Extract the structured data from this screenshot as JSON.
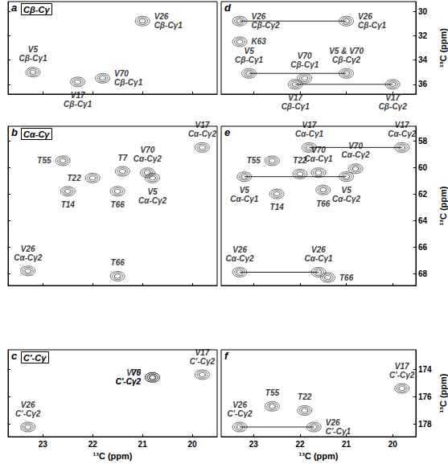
{
  "chart_data": [
    {
      "type": "scatter",
      "marker": "contour",
      "title": "a",
      "subtitle": "Cβ-Cγ",
      "color": "#222222",
      "grid": false,
      "tick_labels": false,
      "xlim": [
        23.7,
        19.5
      ],
      "xticks": [
        23,
        22,
        21,
        20
      ],
      "ylim": [
        36.8,
        29.2
      ],
      "yticks": [
        30,
        32,
        34,
        36
      ],
      "points": [
        {
          "x": 21.0,
          "y": 30.8,
          "label": "V26\nCβ-Cγ1"
        },
        {
          "x": 23.2,
          "y": 35.0,
          "label": "V5\nCβ-Cγ1"
        },
        {
          "x": 22.3,
          "y": 35.8,
          "label": "V17\nCβ-Cγ1"
        },
        {
          "x": 21.8,
          "y": 35.5,
          "label": "V70\nCβ-Cγ1"
        }
      ],
      "lines": []
    },
    {
      "type": "scatter",
      "marker": "contour",
      "title": "b",
      "subtitle": "Cα-Cγ",
      "color": "#222222",
      "grid": false,
      "tick_labels": false,
      "xlim": [
        23.7,
        19.5
      ],
      "xticks": [
        23,
        22,
        21,
        20
      ],
      "ylim": [
        68.9,
        56.9
      ],
      "yticks": [
        58,
        60,
        62,
        64,
        66,
        68
      ],
      "points": [
        {
          "x": 22.6,
          "y": 59.5,
          "label": "T55"
        },
        {
          "x": 21.4,
          "y": 60.3,
          "label": "T7"
        },
        {
          "x": 20.9,
          "y": 60.4,
          "label": "V70\nCα-Cγ2"
        },
        {
          "x": 20.8,
          "y": 60.8,
          "label": "V5\nCα-Cγ2"
        },
        {
          "x": 22.0,
          "y": 60.8,
          "label": "T22"
        },
        {
          "x": 22.5,
          "y": 61.8,
          "label": "T14"
        },
        {
          "x": 21.5,
          "y": 61.8,
          "label": "T66"
        },
        {
          "x": 19.8,
          "y": 58.5,
          "label": "V17\nCα-Cγ2"
        },
        {
          "x": 23.3,
          "y": 67.8,
          "label": "V26\nCα-Cγ2"
        },
        {
          "x": 21.5,
          "y": 68.2,
          "label": "T66"
        }
      ],
      "lines": []
    },
    {
      "type": "scatter",
      "marker": "contour",
      "title": "c",
      "subtitle": "C'-Cγ",
      "color": "#222222",
      "grid": false,
      "tick_labels": "x",
      "xlabel": "¹³C (ppm)",
      "xlim": [
        23.7,
        19.5
      ],
      "xticks": [
        23,
        22,
        21,
        20
      ],
      "ylim": [
        178.9,
        172.6
      ],
      "yticks": [
        174,
        176,
        178
      ],
      "points": [
        {
          "x": 20.8,
          "y": 174.6,
          "label": "V5\nC'-Cγ2"
        },
        {
          "x": 20.8,
          "y": 174.6,
          "label": "V70\nC'-Cγ2"
        },
        {
          "x": 19.8,
          "y": 174.4,
          "label": "V17\nC'-Cγ2"
        },
        {
          "x": 23.3,
          "y": 178.2,
          "label": "V26\nC'-Cγ2"
        }
      ],
      "lines": []
    },
    {
      "type": "scatter",
      "marker": "contour",
      "title": "d",
      "color": "#222222",
      "grid": false,
      "tick_labels": "y",
      "ylabel": "¹³C (ppm)",
      "xlim": [
        23.7,
        19.5
      ],
      "xticks": [
        23,
        22,
        21,
        20
      ],
      "ylim": [
        36.8,
        29.2
      ],
      "yticks": [
        30,
        32,
        34,
        36
      ],
      "points": [
        {
          "x": 23.3,
          "y": 30.8,
          "label": "V26\nCβ-Cγ2"
        },
        {
          "x": 21.0,
          "y": 30.8,
          "label": "V26\nCβ-Cγ1"
        },
        {
          "x": 23.3,
          "y": 32.5,
          "label": "K63"
        },
        {
          "x": 23.1,
          "y": 35.1,
          "label": "V5\nCβ-Cγ1"
        },
        {
          "x": 21.9,
          "y": 35.5,
          "label": "V70\nCβ-Cγ1"
        },
        {
          "x": 21.0,
          "y": 35.1,
          "label": "V5 & V70\nCβ-Cγ2"
        },
        {
          "x": 22.1,
          "y": 36.0,
          "label": "V17\nCβ-Cγ1"
        },
        {
          "x": 20.0,
          "y": 36.0,
          "label": "V17\nCβ-Cγ2"
        }
      ],
      "lines": [
        {
          "x": [
            23.3,
            21.0
          ],
          "y": [
            30.8,
            30.8
          ]
        },
        {
          "x": [
            23.1,
            21.0
          ],
          "y": [
            35.1,
            35.1
          ]
        },
        {
          "x": [
            22.1,
            20.0
          ],
          "y": [
            36.0,
            36.0
          ]
        }
      ]
    },
    {
      "type": "scatter",
      "marker": "contour",
      "title": "e",
      "color": "#222222",
      "grid": false,
      "tick_labels": "y",
      "ylabel": "¹³C (ppm)",
      "xlim": [
        23.7,
        19.5
      ],
      "xticks": [
        23,
        22,
        21,
        20
      ],
      "ylim": [
        68.9,
        56.9
      ],
      "yticks": [
        58,
        60,
        62,
        64,
        66,
        68
      ],
      "points": [
        {
          "x": 21.8,
          "y": 58.5,
          "label": "V17\nCα-Cγ1"
        },
        {
          "x": 19.8,
          "y": 58.5,
          "label": "V17\nCα-Cγ2"
        },
        {
          "x": 22.6,
          "y": 59.5,
          "label": "T55"
        },
        {
          "x": 23.2,
          "y": 60.7,
          "label": "V5\nCα-Cγ1"
        },
        {
          "x": 21.0,
          "y": 60.7,
          "label": "V5\nCα-Cγ2"
        },
        {
          "x": 22.0,
          "y": 60.5,
          "label": "T22"
        },
        {
          "x": 21.6,
          "y": 60.4,
          "label": "V70\nCα-Cγ1"
        },
        {
          "x": 20.8,
          "y": 60.1,
          "label": "V70\nCα-Cγ2"
        },
        {
          "x": 22.5,
          "y": 62.0,
          "label": "T14"
        },
        {
          "x": 21.5,
          "y": 61.7,
          "label": "T66"
        },
        {
          "x": 23.3,
          "y": 67.9,
          "label": "V26\nCα-Cγ2"
        },
        {
          "x": 21.6,
          "y": 67.9,
          "label": "V26\nCα-Cγ1"
        },
        {
          "x": 21.4,
          "y": 68.3,
          "label": "T66"
        }
      ],
      "lines": [
        {
          "x": [
            21.8,
            19.8
          ],
          "y": [
            58.5,
            58.5
          ]
        },
        {
          "x": [
            23.2,
            21.0
          ],
          "y": [
            60.7,
            60.7
          ]
        },
        {
          "x": [
            23.3,
            21.6
          ],
          "y": [
            67.9,
            67.9
          ]
        }
      ]
    },
    {
      "type": "scatter",
      "marker": "contour",
      "title": "f",
      "color": "#222222",
      "grid": false,
      "tick_labels": true,
      "xlabel": "¹³C (ppm)",
      "ylabel": "¹³C (ppm)",
      "xlim": [
        23.7,
        19.5
      ],
      "xticks": [
        23,
        22,
        21,
        20
      ],
      "ylim": [
        178.9,
        172.6
      ],
      "yticks": [
        174,
        176,
        178
      ],
      "points": [
        {
          "x": 23.3,
          "y": 178.2,
          "label": "V26\nC'-Cγ2"
        },
        {
          "x": 21.7,
          "y": 178.2,
          "label": "V26\nC'-Cγ1"
        },
        {
          "x": 22.6,
          "y": 176.7,
          "label": "T55"
        },
        {
          "x": 21.9,
          "y": 177.0,
          "label": "T22"
        },
        {
          "x": 19.8,
          "y": 175.4,
          "label": "V17\nC'-Cγ2"
        }
      ],
      "lines": [
        {
          "x": [
            23.3,
            21.7
          ],
          "y": [
            178.2,
            178.2
          ]
        }
      ]
    }
  ]
}
